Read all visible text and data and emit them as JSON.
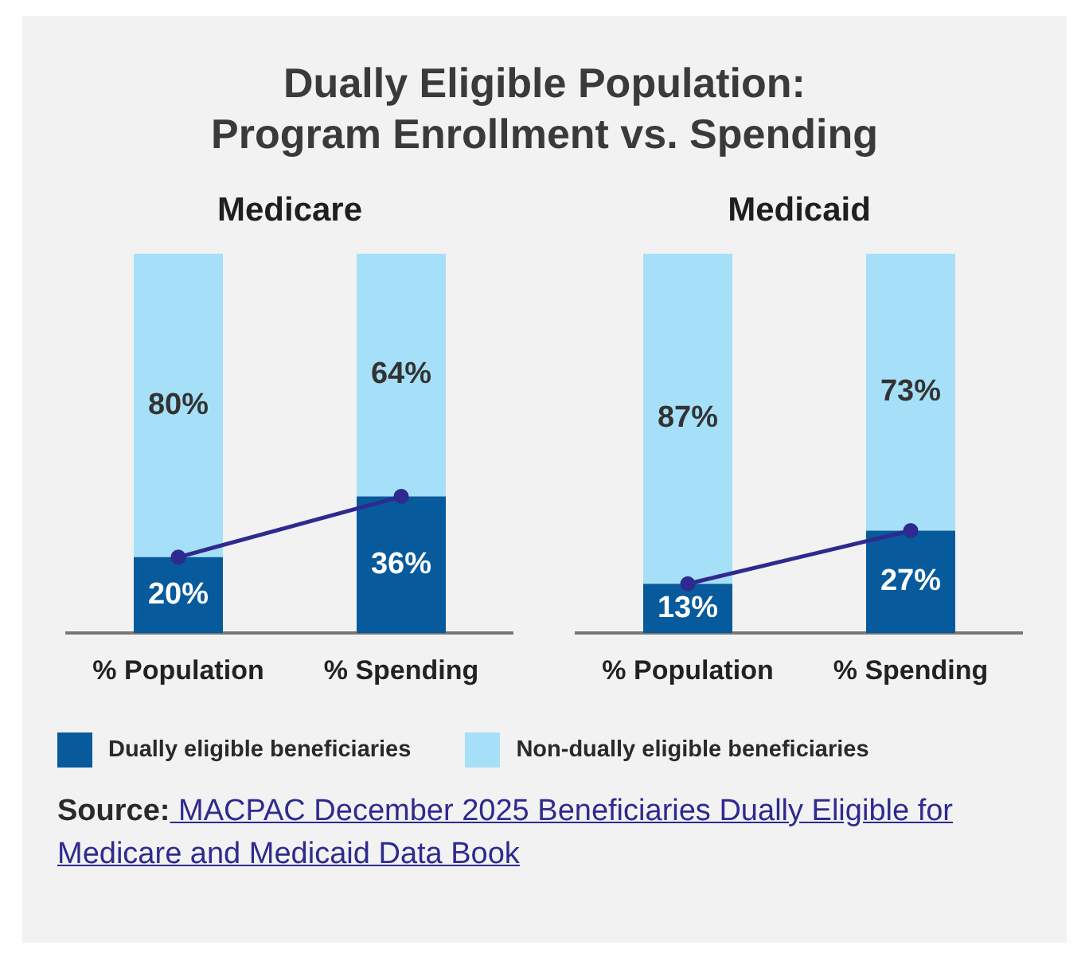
{
  "chart_data": [
    {
      "type": "other",
      "title": "Dually Eligible Population:\nProgram Enrollment vs. Spending",
      "annotations": [
        "Source: MACPAC December 2025 Beneficiaries Dually Eligible for Medicare and Medicaid Data Book"
      ]
    },
    {
      "type": "bar",
      "title": "Medicare",
      "categories": [
        "% Population",
        "% Spending"
      ],
      "stacked": true,
      "grid": false,
      "legend": "bottom",
      "marker": "circle",
      "series": [
        {
          "name": "Dually eligible beneficiaries",
          "color": "#075a9c",
          "values": [
            20,
            36
          ],
          "value_labels": [
            "20%",
            "36%"
          ]
        },
        {
          "name": "Non-dually eligible beneficiaries",
          "color": "#a6e0f8",
          "values": [
            80,
            64
          ],
          "value_labels": [
            "80%",
            "64%"
          ]
        },
        {
          "type": "line",
          "color": "#2e2a8f",
          "values": [
            20,
            36
          ]
        }
      ]
    },
    {
      "type": "bar",
      "title": "Medicaid",
      "categories": [
        "% Population",
        "% Spending"
      ],
      "stacked": true,
      "grid": false,
      "marker": "circle",
      "series": [
        {
          "color": "#075a9c",
          "values": [
            13,
            27
          ],
          "value_labels": [
            "13%",
            "27%"
          ]
        },
        {
          "color": "#a6e0f8",
          "values": [
            87,
            73
          ],
          "value_labels": [
            "87%",
            "73%"
          ]
        },
        {
          "type": "line",
          "color": "#2e2a8f",
          "values": [
            13,
            27
          ]
        }
      ]
    }
  ]
}
